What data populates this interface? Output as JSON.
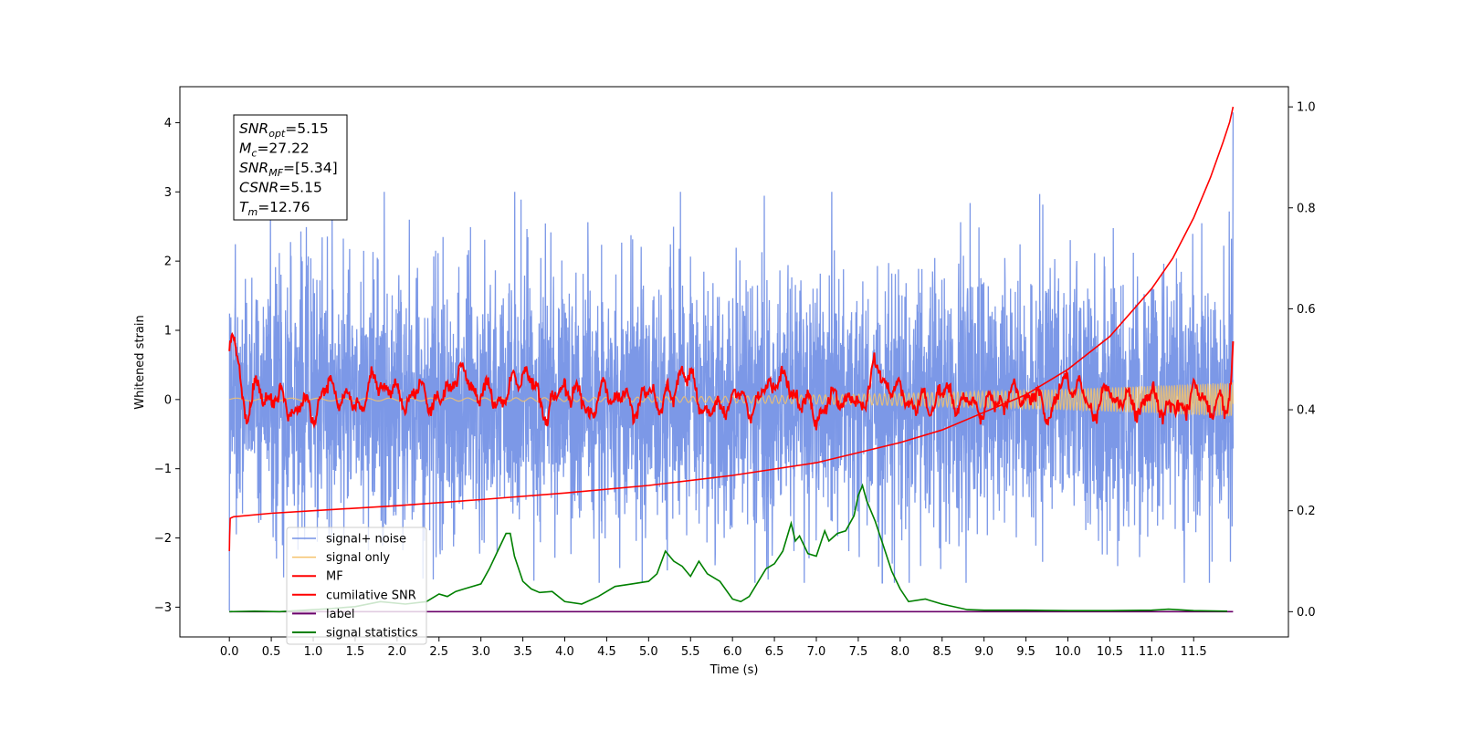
{
  "chart_data": {
    "type": "line",
    "xlabel": "Time (s)",
    "ylabel": "Whitened strain",
    "xlim": [
      -0.59,
      12.63
    ],
    "ylim": [
      -3.43,
      4.52
    ],
    "y2lim": [
      -0.05,
      1.04
    ],
    "x_ticks": [
      0.0,
      0.5,
      1.0,
      1.5,
      2.0,
      2.5,
      3.0,
      3.5,
      4.0,
      4.5,
      5.0,
      5.5,
      6.0,
      6.5,
      7.0,
      7.5,
      8.0,
      8.5,
      9.0,
      9.5,
      10.0,
      10.5,
      11.0,
      11.5
    ],
    "x_tick_labels": [
      "0.0",
      "0.5",
      "1.0",
      "1.5",
      "2.0",
      "2.5",
      "3.0",
      "3.5",
      "4.0",
      "4.5",
      "5.0",
      "5.5",
      "6.0",
      "6.5",
      "7.0",
      "7.5",
      "8.0",
      "8.5",
      "9.0",
      "9.5",
      "10.0",
      "10.5",
      "11.0",
      "11.5"
    ],
    "y_ticks": [
      -3,
      -2,
      -1,
      0,
      1,
      2,
      3,
      4
    ],
    "y_tick_labels": [
      "−3",
      "−2",
      "−1",
      "0",
      "1",
      "2",
      "3",
      "4"
    ],
    "y2_ticks": [
      0.0,
      0.2,
      0.4,
      0.6,
      0.8,
      1.0
    ],
    "y2_tick_labels": [
      "0.0",
      "0.2",
      "0.4",
      "0.6",
      "0.8",
      "1.0"
    ],
    "grid": false,
    "legend_position": "lower-left",
    "annotation": {
      "lines": [
        {
          "main": "SNR",
          "sub": "opt",
          "rest": "=5.15"
        },
        {
          "main": "M",
          "sub": "c",
          "rest": "=27.22"
        },
        {
          "main": "SNR",
          "sub": "MF",
          "rest": "=[5.34]"
        },
        {
          "main": "CSNR",
          "sub": "",
          "rest": "=5.15"
        },
        {
          "main": "T",
          "sub": "m",
          "rest": "=12.76"
        }
      ]
    },
    "series": [
      {
        "name": "signal+ noise",
        "color": "#7592e6",
        "axis": "left",
        "kind": "noise",
        "t_range": [
          0.0,
          11.97
        ],
        "amplitude_range": [
          -3.05,
          4.15
        ],
        "std": 0.9
      },
      {
        "name": "signal only",
        "color": "#f5c26b",
        "axis": "left",
        "kind": "chirp",
        "t_range": [
          0.0,
          11.97
        ],
        "amplitude_start": 0.02,
        "amplitude_end": 0.25
      },
      {
        "name": "MF",
        "color": "#ff0000",
        "axis": "left",
        "kind": "matched-filter",
        "x": [
          0.0,
          0.05,
          0.1,
          0.15,
          0.2,
          0.3,
          0.4,
          0.5,
          0.7,
          1.0,
          1.2,
          1.5,
          1.8,
          2.0,
          2.3,
          2.5,
          2.7,
          3.0,
          3.3,
          3.5,
          3.8,
          4.0,
          4.3,
          4.5,
          4.8,
          5.0,
          5.3,
          5.4,
          5.6,
          5.8,
          6.0,
          6.3,
          6.5,
          6.8,
          7.0,
          7.3,
          7.5,
          7.7,
          8.0,
          8.3,
          8.5,
          8.8,
          9.0,
          9.3,
          9.5,
          9.8,
          10.0,
          10.3,
          10.5,
          10.8,
          11.0,
          11.3,
          11.5,
          11.8,
          11.9,
          11.95,
          11.97
        ],
        "y": [
          0.65,
          0.8,
          0.55,
          0.1,
          -0.2,
          0.15,
          0.0,
          0.1,
          -0.1,
          -0.15,
          0.2,
          -0.1,
          0.3,
          0.0,
          0.1,
          -0.1,
          0.4,
          0.1,
          0.0,
          0.45,
          -0.2,
          0.2,
          -0.15,
          0.15,
          -0.1,
          0.05,
          0.0,
          0.55,
          -0.05,
          -0.2,
          0.05,
          -0.1,
          0.35,
          0.0,
          -0.2,
          0.1,
          -0.15,
          0.45,
          0.05,
          -0.1,
          0.1,
          -0.05,
          -0.1,
          0.05,
          0.1,
          -0.2,
          0.35,
          -0.15,
          0.1,
          -0.1,
          0.05,
          -0.2,
          0.1,
          -0.15,
          -0.1,
          0.3,
          0.95
        ]
      },
      {
        "name": "cumilative SNR",
        "color": "#ff0000",
        "axis": "right",
        "kind": "cumulative",
        "x": [
          0.0,
          0.003,
          0.01,
          0.05,
          0.5,
          1.0,
          2.0,
          3.0,
          4.0,
          5.0,
          6.0,
          7.0,
          8.0,
          8.5,
          9.0,
          9.5,
          10.0,
          10.5,
          11.0,
          11.25,
          11.5,
          11.7,
          11.85,
          11.93,
          11.97
        ],
        "y": [
          0.12,
          0.15,
          0.185,
          0.188,
          0.195,
          0.2,
          0.21,
          0.222,
          0.235,
          0.25,
          0.27,
          0.295,
          0.335,
          0.36,
          0.395,
          0.43,
          0.48,
          0.545,
          0.64,
          0.7,
          0.78,
          0.86,
          0.93,
          0.97,
          1.0
        ]
      },
      {
        "name": "label",
        "color": "#6a006a",
        "axis": "right",
        "kind": "constant",
        "x": [
          0.0,
          11.97
        ],
        "y": [
          0.0,
          0.0
        ]
      },
      {
        "name": "signal statistics",
        "color": "#008000",
        "axis": "right",
        "kind": "statistic",
        "x": [
          0.0,
          0.3,
          0.6,
          0.9,
          1.2,
          1.5,
          1.8,
          2.1,
          2.35,
          2.5,
          2.6,
          2.7,
          2.8,
          3.0,
          3.1,
          3.2,
          3.3,
          3.35,
          3.4,
          3.5,
          3.6,
          3.7,
          3.85,
          4.0,
          4.2,
          4.4,
          4.6,
          4.8,
          5.0,
          5.1,
          5.2,
          5.3,
          5.4,
          5.5,
          5.6,
          5.7,
          5.85,
          6.0,
          6.1,
          6.2,
          6.4,
          6.5,
          6.6,
          6.7,
          6.75,
          6.8,
          6.9,
          7.0,
          7.1,
          7.15,
          7.25,
          7.35,
          7.45,
          7.5,
          7.55,
          7.6,
          7.7,
          7.8,
          7.9,
          8.0,
          8.1,
          8.3,
          8.5,
          8.8,
          9.0,
          9.5,
          10.0,
          10.5,
          11.0,
          11.2,
          11.5,
          11.9
        ],
        "y": [
          0.0,
          0.001,
          0.0,
          0.003,
          0.006,
          0.01,
          0.02,
          0.015,
          0.02,
          0.035,
          0.03,
          0.04,
          0.045,
          0.055,
          0.085,
          0.12,
          0.155,
          0.155,
          0.11,
          0.06,
          0.045,
          0.038,
          0.04,
          0.02,
          0.015,
          0.03,
          0.05,
          0.055,
          0.06,
          0.075,
          0.12,
          0.1,
          0.09,
          0.07,
          0.1,
          0.075,
          0.06,
          0.025,
          0.02,
          0.03,
          0.085,
          0.095,
          0.12,
          0.175,
          0.14,
          0.15,
          0.115,
          0.11,
          0.16,
          0.14,
          0.155,
          0.16,
          0.19,
          0.23,
          0.25,
          0.22,
          0.18,
          0.13,
          0.08,
          0.045,
          0.02,
          0.025,
          0.015,
          0.004,
          0.003,
          0.003,
          0.002,
          0.002,
          0.003,
          0.005,
          0.002,
          0.001
        ]
      }
    ]
  }
}
